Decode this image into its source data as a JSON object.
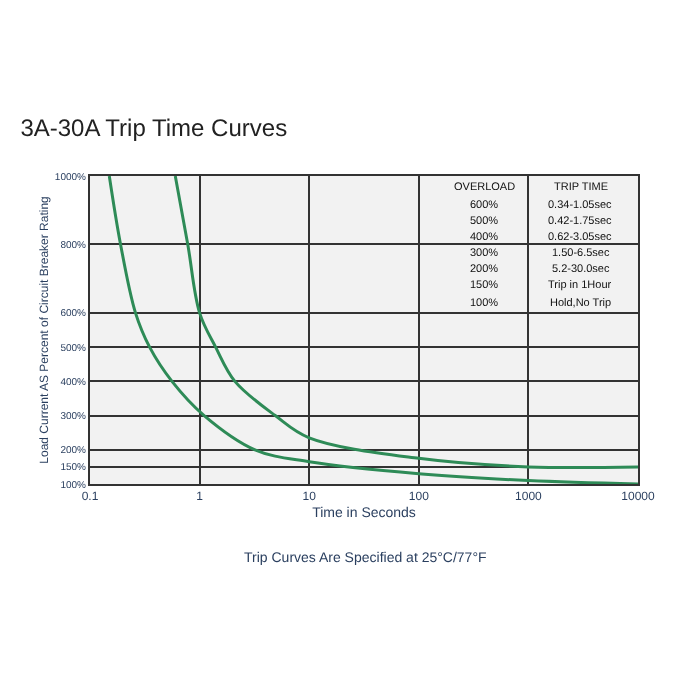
{
  "chart_data": {
    "type": "line",
    "title": "3A-30A Trip Time Curves",
    "xlabel": "Time in Seconds",
    "ylabel": "Load Current AS Percent of Circuit Breaker Rating",
    "log": "x",
    "xlim": [
      0.1,
      10000
    ],
    "xticks": [
      0.1,
      1,
      10,
      100,
      1000,
      10000
    ],
    "ylim": [
      100,
      1000
    ],
    "yticks": [
      {
        "value": 100,
        "label": "100%"
      },
      {
        "value": 150,
        "label": "150%"
      },
      {
        "value": 200,
        "label": "200%"
      },
      {
        "value": 300,
        "label": "300%"
      },
      {
        "value": 400,
        "label": "400%"
      },
      {
        "value": 500,
        "label": "500%"
      },
      {
        "value": 600,
        "label": "600%"
      },
      {
        "value": 800,
        "label": "800%"
      },
      {
        "value": 1000,
        "label": "1000%"
      }
    ],
    "grid": true,
    "marker": "none",
    "line_style": "solid",
    "series": [
      {
        "color": "#2e8b57",
        "x": [
          0.15,
          0.19,
          0.26,
          0.35,
          0.56,
          1.1,
          3.2,
          10,
          100,
          1000,
          10000
        ],
        "values": [
          1000,
          800,
          600,
          500,
          400,
          300,
          200,
          165,
          130,
          110,
          100
        ]
      },
      {
        "color": "#2e8b57",
        "x": [
          0.6,
          0.78,
          1.0,
          1.4,
          2.1,
          4.9,
          10,
          100,
          1000,
          10000
        ],
        "values": [
          1000,
          800,
          600,
          500,
          400,
          300,
          235,
          175,
          150,
          150
        ]
      }
    ],
    "annotations": [
      "Trip Curves Are Specified at 25°C/77°F",
      "OVERLOAD",
      "TRIP TIME",
      "600%",
      "0.34-1.05sec",
      "500%",
      "0.42-1.75sec",
      "400%",
      "0.62-3.05sec",
      "300%",
      "1.50-6.5sec",
      "200%",
      "5.2-30.0sec",
      "150%",
      "Trip in 1Hour",
      "100%",
      "Hold,No Trip"
    ]
  }
}
